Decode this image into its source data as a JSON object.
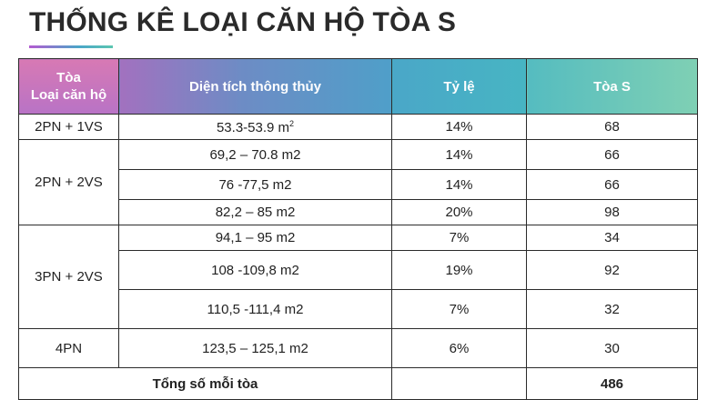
{
  "page": {
    "title": "THỐNG KÊ LOẠI CĂN HỘ TÒA S"
  },
  "table": {
    "headers": {
      "col1_line1": "Tòa",
      "col1_line2": "Loại căn hộ",
      "area": "Diện tích thông thủy",
      "ratio": "Tỷ lệ",
      "tower": "Tòa S"
    },
    "groups": [
      {
        "type": "2PN + 1VS",
        "rows": [
          {
            "area": "53.3-53.9 m",
            "area_sup": "2",
            "ratio": "14%",
            "count": "68"
          }
        ]
      },
      {
        "type": "2PN + 2VS",
        "rows": [
          {
            "area": "69,2 – 70.8 m2",
            "ratio": "14%",
            "count": "66"
          },
          {
            "area": "76 -77,5 m2",
            "ratio": "14%",
            "count": "66"
          },
          {
            "area": "82,2 – 85 m2",
            "ratio": "20%",
            "count": "98"
          }
        ]
      },
      {
        "type": "3PN + 2VS",
        "rows": [
          {
            "area": "94,1 – 95 m2",
            "ratio": "7%",
            "count": "34"
          },
          {
            "area": "108 -109,8 m2",
            "ratio": "19%",
            "count": "92"
          },
          {
            "area": "110,5 -111,4 m2",
            "ratio": "7%",
            "count": "32"
          }
        ]
      },
      {
        "type": "4PN",
        "rows": [
          {
            "area": "123,5 – 125,1 m2",
            "ratio": "6%",
            "count": "30"
          }
        ]
      }
    ],
    "total": {
      "label": "Tổng số mỗi tòa",
      "ratio": "",
      "count": "486"
    }
  }
}
